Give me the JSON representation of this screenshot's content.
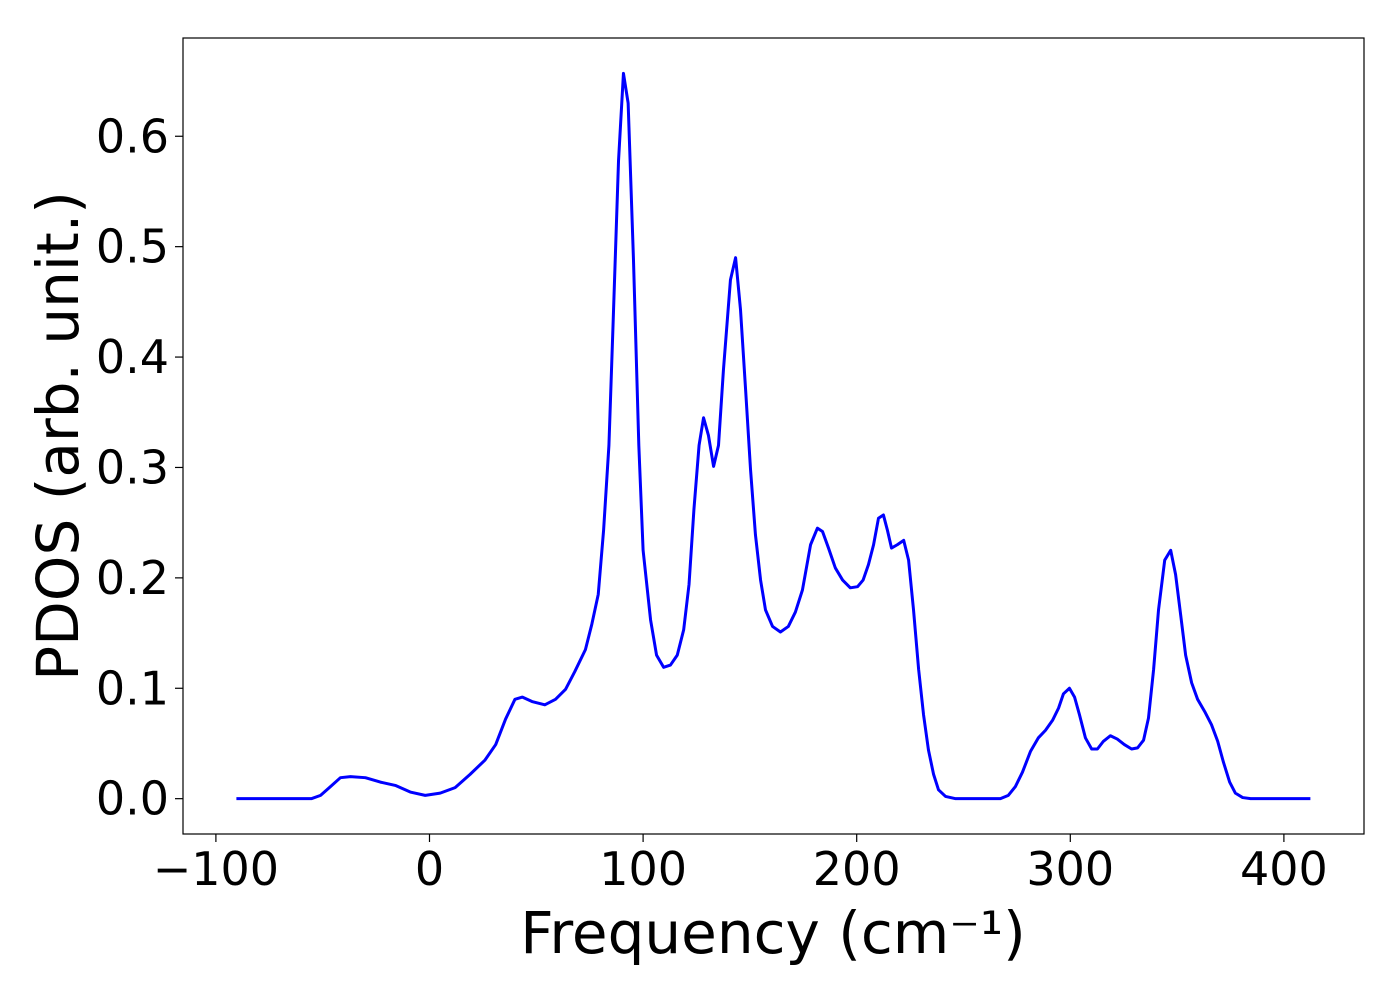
{
  "chart_data": {
    "type": "line",
    "xlabel": "Frequency (cm⁻¹)",
    "ylabel": "PDOS (arb. unit.)",
    "xlim": [
      -115.4,
      437.5
    ],
    "ylim": [
      -0.032,
      0.689
    ],
    "xticks": [
      {
        "value": -100,
        "label": "−100"
      },
      0,
      100,
      200,
      300,
      400
    ],
    "yticks": [
      {
        "value": 0,
        "label": "0.0"
      },
      0.1,
      0.2,
      0.3,
      0.4,
      0.5,
      0.6
    ],
    "grid": false,
    "x": [
      -90.4,
      -55.3,
      -51,
      -46.3,
      -41.7,
      -37,
      -30,
      -23,
      -16,
      -9,
      -2,
      5,
      12,
      19,
      26,
      31,
      35.6,
      40,
      43.5,
      48,
      54,
      59,
      63.7,
      68,
      73,
      76,
      79,
      81.5,
      84,
      86,
      88.5,
      90.8,
      93,
      95.5,
      98,
      100,
      103.5,
      106.3,
      109.6,
      112.8,
      116,
      119,
      121.5,
      123.8,
      126.2,
      128.3,
      130.6,
      133,
      135.3,
      137.6,
      140.9,
      143.3,
      145.6,
      148,
      150.3,
      152.6,
      155,
      157.3,
      160.6,
      164.3,
      168,
      171.3,
      174.6,
      178.4,
      181.6,
      184,
      186.8,
      190,
      193.4,
      197,
      200.4,
      203,
      205.5,
      207.9,
      210.2,
      212.5,
      214.4,
      216.3,
      219,
      222,
      224.3,
      226.6,
      229,
      231.3,
      233.6,
      236,
      238.3,
      241.6,
      246.3,
      267.3,
      271,
      274.3,
      277.6,
      281.4,
      285,
      288.4,
      291.7,
      294.5,
      296.8,
      299.6,
      302,
      304.3,
      307.1,
      310,
      312.7,
      315.5,
      318.8,
      322,
      325.3,
      328.7,
      331.5,
      334.3,
      336.6,
      339,
      341.3,
      344.2,
      347,
      349.3,
      351.7,
      354,
      356.8,
      359.6,
      362.9,
      366.1,
      369,
      371.7,
      374.6,
      377.3,
      380.7,
      384.4,
      412.4
    ],
    "series": [
      {
        "color": "#0000ff",
        "values": [
          0,
          0,
          0.003,
          0.011,
          0.019,
          0.02,
          0.019,
          0.015,
          0.012,
          0.006,
          0.003,
          0.005,
          0.01,
          0.022,
          0.035,
          0.049,
          0.072,
          0.09,
          0.092,
          0.088,
          0.085,
          0.09,
          0.099,
          0.115,
          0.135,
          0.158,
          0.185,
          0.243,
          0.32,
          0.433,
          0.578,
          0.657,
          0.63,
          0.488,
          0.32,
          0.225,
          0.162,
          0.13,
          0.119,
          0.121,
          0.13,
          0.153,
          0.194,
          0.262,
          0.32,
          0.345,
          0.329,
          0.301,
          0.32,
          0.388,
          0.47,
          0.49,
          0.443,
          0.37,
          0.298,
          0.239,
          0.198,
          0.171,
          0.156,
          0.151,
          0.156,
          0.169,
          0.189,
          0.23,
          0.245,
          0.242,
          0.227,
          0.209,
          0.198,
          0.191,
          0.192,
          0.198,
          0.212,
          0.23,
          0.254,
          0.257,
          0.243,
          0.227,
          0.23,
          0.234,
          0.216,
          0.171,
          0.117,
          0.076,
          0.044,
          0.022,
          0.008,
          0.002,
          0,
          0,
          0.003,
          0.011,
          0.024,
          0.043,
          0.055,
          0.062,
          0.071,
          0.082,
          0.095,
          0.1,
          0.092,
          0.076,
          0.055,
          0.045,
          0.045,
          0.052,
          0.057,
          0.054,
          0.049,
          0.045,
          0.046,
          0.053,
          0.073,
          0.117,
          0.171,
          0.216,
          0.225,
          0.203,
          0.166,
          0.13,
          0.105,
          0.09,
          0.079,
          0.067,
          0.052,
          0.033,
          0.015,
          0.005,
          0.001,
          0,
          0
        ]
      }
    ]
  }
}
